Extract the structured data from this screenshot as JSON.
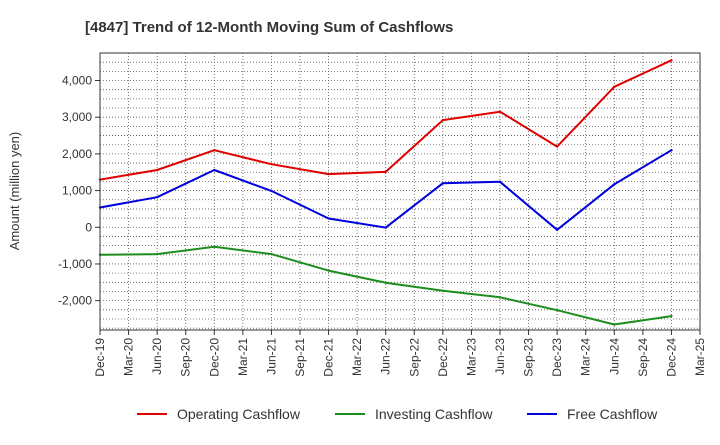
{
  "chart_data": {
    "type": "line",
    "title": "[4847]  Trend of 12-Month Moving Sum of Cashflows",
    "xlabel": "",
    "ylabel": "Amount (million yen)",
    "ylim": [
      -2800,
      4750
    ],
    "y_ticks": [
      -2000,
      -1000,
      0,
      1000,
      2000,
      3000,
      4000
    ],
    "y_tick_labels": [
      "-2,000",
      "-1,000",
      "0",
      "1,000",
      "2,000",
      "3,000",
      "4,000"
    ],
    "categories": [
      "Dec-19",
      "Mar-20",
      "Jun-20",
      "Sep-20",
      "Dec-20",
      "Mar-21",
      "Jun-21",
      "Sep-21",
      "Dec-21",
      "Mar-22",
      "Jun-22",
      "Sep-22",
      "Dec-22",
      "Mar-23",
      "Jun-23",
      "Sep-23",
      "Dec-23",
      "Mar-24",
      "Jun-24",
      "Sep-24",
      "Dec-24",
      "Mar-25"
    ],
    "grid": true,
    "legend_position": "bottom",
    "series": [
      {
        "name": "Operating Cashflow",
        "color": "#e00000",
        "values": [
          1300,
          null,
          1560,
          null,
          2100,
          null,
          1720,
          null,
          1450,
          null,
          1510,
          null,
          2920,
          null,
          3150,
          null,
          2200,
          null,
          3830,
          null,
          4550,
          null
        ]
      },
      {
        "name": "Investing Cashflow",
        "color": "#1e8c1e",
        "values": [
          -750,
          null,
          -730,
          null,
          -530,
          null,
          -730,
          null,
          -1180,
          null,
          -1510,
          null,
          -1730,
          null,
          -1910,
          null,
          -2260,
          null,
          -2650,
          null,
          -2420,
          null
        ]
      },
      {
        "name": "Free Cashflow",
        "color": "#0000dd",
        "values": [
          540,
          null,
          820,
          null,
          1560,
          null,
          990,
          null,
          240,
          null,
          -10,
          null,
          1200,
          null,
          1240,
          null,
          -70,
          null,
          1170,
          null,
          2100,
          null
        ]
      }
    ]
  }
}
